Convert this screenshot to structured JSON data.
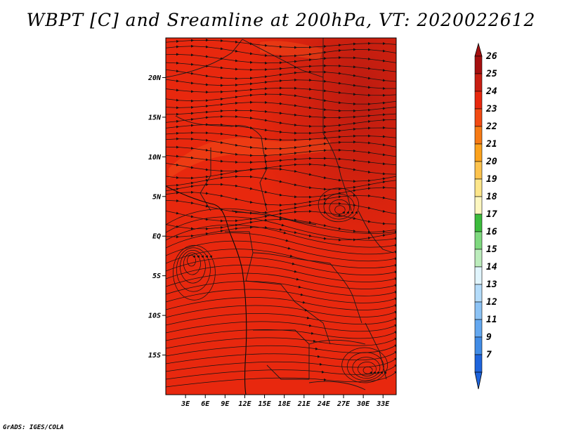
{
  "title": "WBPT [C] and Sreamline at 200hPa, VT: 2020022612",
  "credit": "GrADS: IGES/COLA",
  "map": {
    "lon_range": [
      0,
      35
    ],
    "lat_range": [
      -20,
      25
    ],
    "fill_color": "#e8280e",
    "x_ticks": [
      {
        "value": 3,
        "label": "3E"
      },
      {
        "value": 6,
        "label": "6E"
      },
      {
        "value": 9,
        "label": "9E"
      },
      {
        "value": 12,
        "label": "12E"
      },
      {
        "value": 15,
        "label": "15E"
      },
      {
        "value": 18,
        "label": "18E"
      },
      {
        "value": 21,
        "label": "21E"
      },
      {
        "value": 24,
        "label": "24E"
      },
      {
        "value": 27,
        "label": "27E"
      },
      {
        "value": 30,
        "label": "30E"
      },
      {
        "value": 33,
        "label": "33E"
      }
    ],
    "y_ticks": [
      {
        "value": 20,
        "label": "20N"
      },
      {
        "value": 15,
        "label": "15N"
      },
      {
        "value": 10,
        "label": "10N"
      },
      {
        "value": 5,
        "label": "5N"
      },
      {
        "value": 0,
        "label": "EQ"
      },
      {
        "value": -5,
        "label": "5S"
      },
      {
        "value": -10,
        "label": "10S"
      },
      {
        "value": -15,
        "label": "15S"
      }
    ]
  },
  "colorbar": {
    "levels": [
      {
        "label": "26",
        "color": "#a50f0f"
      },
      {
        "label": "25",
        "color": "#c81e12"
      },
      {
        "label": "24",
        "color": "#e8280e"
      },
      {
        "label": "23",
        "color": "#f24a12"
      },
      {
        "label": "22",
        "color": "#f77a14"
      },
      {
        "label": "21",
        "color": "#fca21c"
      },
      {
        "label": "20",
        "color": "#fdc34d"
      },
      {
        "label": "19",
        "color": "#fde68a"
      },
      {
        "label": "18",
        "color": "#fdf7c0"
      },
      {
        "label": "17",
        "color": "#3cbc3c"
      },
      {
        "label": "16",
        "color": "#7fd97f"
      },
      {
        "label": "15",
        "color": "#bcecbc"
      },
      {
        "label": "14",
        "color": "#e1f5fd"
      },
      {
        "label": "13",
        "color": "#b4dcfa"
      },
      {
        "label": "12",
        "color": "#8cc3f5"
      },
      {
        "label": "11",
        "color": "#64a8f0"
      },
      {
        "label": "9",
        "color": "#418ce6"
      },
      {
        "label": "7",
        "color": "#1e64dc"
      }
    ]
  }
}
